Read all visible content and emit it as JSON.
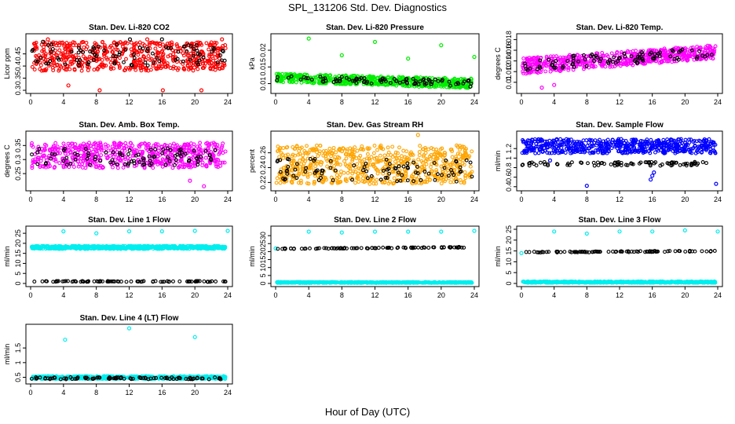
{
  "title": "SPL_131206  Std. Dev. Diagnostics",
  "xlabel": "Hour of Day (UTC)",
  "colors": {
    "black": "#000000",
    "red": "#ff0000",
    "green": "#00ee00",
    "magenta": "#ff00ff",
    "orange": "#ffa500",
    "blue": "#0000ff",
    "cyan": "#00eeee"
  },
  "chart_data": [
    {
      "type": "scatter",
      "title": "Stan. Dev. Li-820 CO2",
      "xlabel": "",
      "ylabel": "Licor ppm",
      "xlim": [
        0,
        24
      ],
      "ylim": [
        0.3,
        0.52
      ],
      "xticks": [
        0,
        4,
        8,
        12,
        16,
        20,
        24
      ],
      "yticks": [
        0.3,
        0.35,
        0.4,
        0.45
      ],
      "grid": false,
      "series": [
        {
          "color": "#ff0000",
          "pattern": "band",
          "points": 600,
          "band": [
            0.38,
            0.5
          ],
          "outliers": [
            [
              2.1,
              0.51
            ],
            [
              4.6,
              0.32
            ],
            [
              8.4,
              0.3
            ],
            [
              16.1,
              0.3
            ],
            [
              20.8,
              0.3
            ],
            [
              23.3,
              0.51
            ],
            [
              14.2,
              0.51
            ]
          ]
        },
        {
          "color": "#000000",
          "pattern": "band",
          "points": 90,
          "band": [
            0.4,
            0.49
          ],
          "outliers": [
            [
              1.5,
              0.5
            ],
            [
              12.1,
              0.51
            ],
            [
              16.0,
              0.51
            ]
          ]
        }
      ]
    },
    {
      "type": "scatter",
      "title": "Stan. Dev. Li-820 Pressure",
      "xlabel": "",
      "ylabel": "kPa",
      "xlim": [
        0,
        24
      ],
      "ylim": [
        0.008,
        0.024
      ],
      "xticks": [
        0,
        4,
        8,
        12,
        16,
        20,
        24
      ],
      "yticks": [
        0.01,
        0.015,
        0.02
      ],
      "grid": false,
      "series": [
        {
          "color": "#00ee00",
          "pattern": "decay",
          "points": 600,
          "start": [
            0.0105,
            0.013
          ],
          "end": [
            0.0085,
            0.0115
          ],
          "outliers": [
            [
              4.0,
              0.0235
            ],
            [
              8.0,
              0.0185
            ],
            [
              12.0,
              0.0225
            ],
            [
              16.0,
              0.0175
            ],
            [
              20.0,
              0.0215
            ],
            [
              24.0,
              0.018
            ]
          ]
        },
        {
          "color": "#000000",
          "pattern": "decay",
          "points": 90,
          "start": [
            0.011,
            0.0125
          ],
          "end": [
            0.009,
            0.011
          ],
          "outliers": []
        }
      ]
    },
    {
      "type": "scatter",
      "title": "Stan. Dev. Li-820 Temp.",
      "xlabel": "",
      "ylabel": "degrees C",
      "xlim": [
        0,
        24
      ],
      "ylim": [
        0.0085,
        0.0185
      ],
      "xticks": [
        0,
        4,
        8,
        12,
        16,
        20,
        24
      ],
      "yticks": [
        0.01,
        0.012,
        0.014,
        0.016,
        0.018
      ],
      "grid": false,
      "series": [
        {
          "color": "#ff00ff",
          "pattern": "rise",
          "points": 600,
          "start": [
            0.0115,
            0.0145
          ],
          "end": [
            0.0145,
            0.017
          ],
          "outliers": [
            [
              2.5,
              0.009
            ],
            [
              4.0,
              0.0095
            ]
          ]
        },
        {
          "color": "#000000",
          "pattern": "rise",
          "points": 90,
          "start": [
            0.012,
            0.0145
          ],
          "end": [
            0.0145,
            0.0165
          ],
          "outliers": []
        }
      ]
    },
    {
      "type": "scatter",
      "title": "Stan. Dev. Amb. Box Temp.",
      "xlabel": "",
      "ylabel": "degrees C",
      "xlim": [
        0,
        24
      ],
      "ylim": [
        0.2,
        0.39
      ],
      "xticks": [
        0,
        4,
        8,
        12,
        16,
        20,
        24
      ],
      "yticks": [
        0.25,
        0.3,
        0.35
      ],
      "grid": false,
      "series": [
        {
          "color": "#ff00ff",
          "pattern": "band",
          "points": 600,
          "band": [
            0.27,
            0.36
          ],
          "outliers": [
            [
              19.4,
              0.225
            ],
            [
              21.1,
              0.205
            ]
          ]
        },
        {
          "color": "#000000",
          "pattern": "band",
          "points": 90,
          "band": [
            0.28,
            0.34
          ],
          "outliers": []
        }
      ]
    },
    {
      "type": "scatter",
      "title": "Stan. Dev. Gas Stream RH",
      "xlabel": "",
      "ylabel": "percent",
      "xlim": [
        0,
        24
      ],
      "ylim": [
        0.213,
        0.285
      ],
      "xticks": [
        0,
        4,
        8,
        12,
        16,
        20,
        24
      ],
      "yticks": [
        0.22,
        0.24,
        0.26
      ],
      "grid": false,
      "series": [
        {
          "color": "#ffa500",
          "pattern": "band",
          "points": 700,
          "band": [
            0.218,
            0.27
          ],
          "outliers": [
            [
              17.2,
              0.284
            ]
          ]
        },
        {
          "color": "#000000",
          "pattern": "band",
          "points": 90,
          "band": [
            0.221,
            0.252
          ],
          "outliers": []
        }
      ]
    },
    {
      "type": "scatter",
      "title": "Stan. Dev. Sample Flow",
      "xlabel": "",
      "ylabel": "ml/min",
      "xlim": [
        0,
        24
      ],
      "ylim": [
        0.38,
        1.5
      ],
      "xticks": [
        0,
        4,
        8,
        12,
        16,
        20,
        24
      ],
      "yticks": [
        0.4,
        0.6,
        0.8,
        1.0,
        1.2
      ],
      "grid": false,
      "series": [
        {
          "color": "#0000ff",
          "pattern": "band",
          "points": 600,
          "band": [
            1.1,
            1.4
          ],
          "outliers": [
            [
              8.0,
              0.42
            ],
            [
              15.8,
              0.55
            ],
            [
              16.0,
              0.63
            ],
            [
              16.2,
              0.7
            ],
            [
              23.8,
              0.46
            ],
            [
              3.5,
              0.95
            ]
          ]
        },
        {
          "color": "#000000",
          "pattern": "band",
          "points": 90,
          "band": [
            0.84,
            0.92
          ],
          "outliers": []
        }
      ]
    },
    {
      "type": "scatter",
      "title": "Stan. Dev. Line 1 Flow",
      "xlabel": "",
      "ylabel": "ml/min",
      "xlim": [
        0,
        24
      ],
      "ylim": [
        0,
        27
      ],
      "xticks": [
        0,
        4,
        8,
        12,
        16,
        20,
        24
      ],
      "yticks": [
        0,
        5,
        10,
        15,
        20,
        25
      ],
      "grid": false,
      "series": [
        {
          "color": "#00eeee",
          "pattern": "flat",
          "points": 650,
          "band": [
            17.2,
            18.7
          ],
          "outliers": [
            [
              4.0,
              26.0
            ],
            [
              8.0,
              25.0
            ],
            [
              12.0,
              26.0
            ],
            [
              16.0,
              26.0
            ],
            [
              20.0,
              26.2
            ],
            [
              24.0,
              26.2
            ]
          ]
        },
        {
          "color": "#000000",
          "pattern": "flat",
          "points": 90,
          "band": [
            0.8,
            1.2
          ],
          "outliers": []
        }
      ]
    },
    {
      "type": "scatter",
      "title": "Stan. Dev. Line 2 Flow",
      "xlabel": "",
      "ylabel": "ml/min",
      "xlim": [
        0,
        24
      ],
      "ylim": [
        0,
        34
      ],
      "xticks": [
        0,
        4,
        8,
        12,
        16,
        20,
        24
      ],
      "yticks": [
        0,
        5,
        10,
        15,
        20,
        25,
        30
      ],
      "grid": false,
      "series": [
        {
          "color": "#00eeee",
          "pattern": "flat",
          "points": 650,
          "band": [
            0.3,
            0.9
          ],
          "outliers": [
            [
              0.0,
              22.0
            ],
            [
              4.0,
              32.5
            ],
            [
              8.0,
              32.0
            ],
            [
              12.0,
              32.5
            ],
            [
              16.0,
              32.5
            ],
            [
              20.0,
              32.5
            ],
            [
              24.0,
              33.0
            ]
          ]
        },
        {
          "color": "#000000",
          "pattern": "rise",
          "points": 90,
          "start": [
            21.5,
            22.0
          ],
          "end": [
            22.5,
            23.0
          ],
          "outliers": []
        }
      ]
    },
    {
      "type": "scatter",
      "title": "Stan. Dev. Line 3 Flow",
      "xlabel": "",
      "ylabel": "ml/min",
      "xlim": [
        0,
        24
      ],
      "ylim": [
        0,
        25
      ],
      "xticks": [
        0,
        4,
        8,
        12,
        16,
        20,
        24
      ],
      "yticks": [
        0,
        5,
        10,
        15,
        20,
        25
      ],
      "grid": false,
      "series": [
        {
          "color": "#00eeee",
          "pattern": "flat",
          "points": 650,
          "band": [
            0.3,
            0.9
          ],
          "outliers": [
            [
              0.0,
              14.0
            ],
            [
              4.0,
              24.0
            ],
            [
              8.0,
              23.0
            ],
            [
              12.0,
              24.0
            ],
            [
              16.0,
              24.0
            ],
            [
              20.0,
              24.5
            ],
            [
              24.0,
              24.0
            ]
          ]
        },
        {
          "color": "#000000",
          "pattern": "rise",
          "points": 90,
          "start": [
            14.2,
            14.6
          ],
          "end": [
            14.6,
            15.2
          ],
          "outliers": []
        }
      ]
    },
    {
      "type": "scatter",
      "title": "Stan. Dev. Line 4 (LT) Flow",
      "xlabel": "",
      "ylabel": "ml/min",
      "xlim": [
        0,
        24
      ],
      "ylim": [
        0.38,
        2.2
      ],
      "xticks": [
        0,
        4,
        8,
        12,
        16,
        20,
        24
      ],
      "yticks": [
        0.5,
        1.0,
        1.5
      ],
      "grid": false,
      "series": [
        {
          "color": "#00eeee",
          "pattern": "flat",
          "points": 600,
          "band": [
            0.44,
            0.54
          ],
          "outliers": [
            [
              4.2,
              1.78
            ],
            [
              12.0,
              2.17
            ],
            [
              20.0,
              1.87
            ]
          ]
        },
        {
          "color": "#000000",
          "pattern": "flat",
          "points": 90,
          "band": [
            0.43,
            0.5
          ],
          "outliers": []
        }
      ]
    }
  ]
}
